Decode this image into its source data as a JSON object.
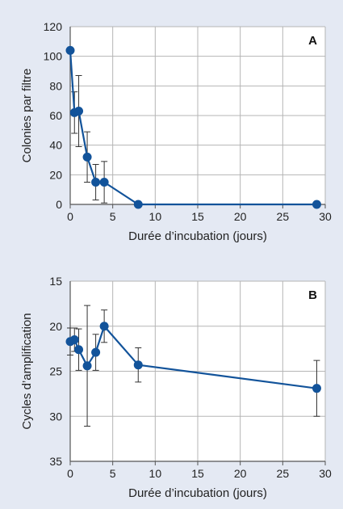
{
  "colors": {
    "page_background": "#e4e9f3",
    "plot_background": "#ffffff",
    "grid": "#b5b5b5",
    "axis": "#555555",
    "series": "#12539a",
    "error_bar": "#333333"
  },
  "chart_data": [
    {
      "type": "line",
      "panel_label": "A",
      "xlabel": "Durée d’incubation (jours)",
      "ylabel": "Colonies par filtre",
      "xlim": [
        0,
        30
      ],
      "ylim": [
        0,
        120
      ],
      "y_inverted": false,
      "grid": true,
      "x_ticks": [
        0,
        5,
        10,
        15,
        20,
        25,
        30
      ],
      "x_tick_labels": [
        "0",
        "5",
        "10",
        "15",
        "20",
        "25",
        "30"
      ],
      "y_ticks": [
        0,
        20,
        40,
        60,
        80,
        100,
        120
      ],
      "y_tick_labels": [
        "0",
        "20",
        "40",
        "60",
        "80",
        "100",
        "120"
      ],
      "series": [
        {
          "x": [
            0,
            0.5,
            1,
            2,
            3,
            4,
            8,
            29
          ],
          "y": [
            104,
            62,
            63,
            32,
            15,
            15,
            0,
            0
          ],
          "error": [
            null,
            14,
            24,
            17,
            12,
            14,
            null,
            null
          ]
        }
      ]
    },
    {
      "type": "line",
      "panel_label": "B",
      "xlabel": "Durée d’incubation (jours)",
      "ylabel": "Cycles d’amplification",
      "xlim": [
        0,
        30
      ],
      "ylim": [
        15,
        35
      ],
      "y_inverted": true,
      "grid": true,
      "x_ticks": [
        0,
        5,
        10,
        15,
        20,
        25,
        30
      ],
      "x_tick_labels": [
        "0",
        "5",
        "10",
        "15",
        "20",
        "25",
        "30"
      ],
      "y_ticks": [
        15,
        20,
        25,
        30,
        35
      ],
      "y_tick_labels": [
        "15",
        "20",
        "25",
        "30",
        "35"
      ],
      "series": [
        {
          "x": [
            0,
            0.5,
            1,
            2,
            3,
            4,
            8,
            29
          ],
          "y": [
            21.7,
            21.5,
            22.6,
            24.4,
            22.9,
            20.0,
            24.3,
            26.9
          ],
          "error": [
            1.5,
            1.3,
            2.3,
            6.7,
            2.0,
            1.8,
            1.9,
            3.1
          ]
        }
      ]
    }
  ]
}
